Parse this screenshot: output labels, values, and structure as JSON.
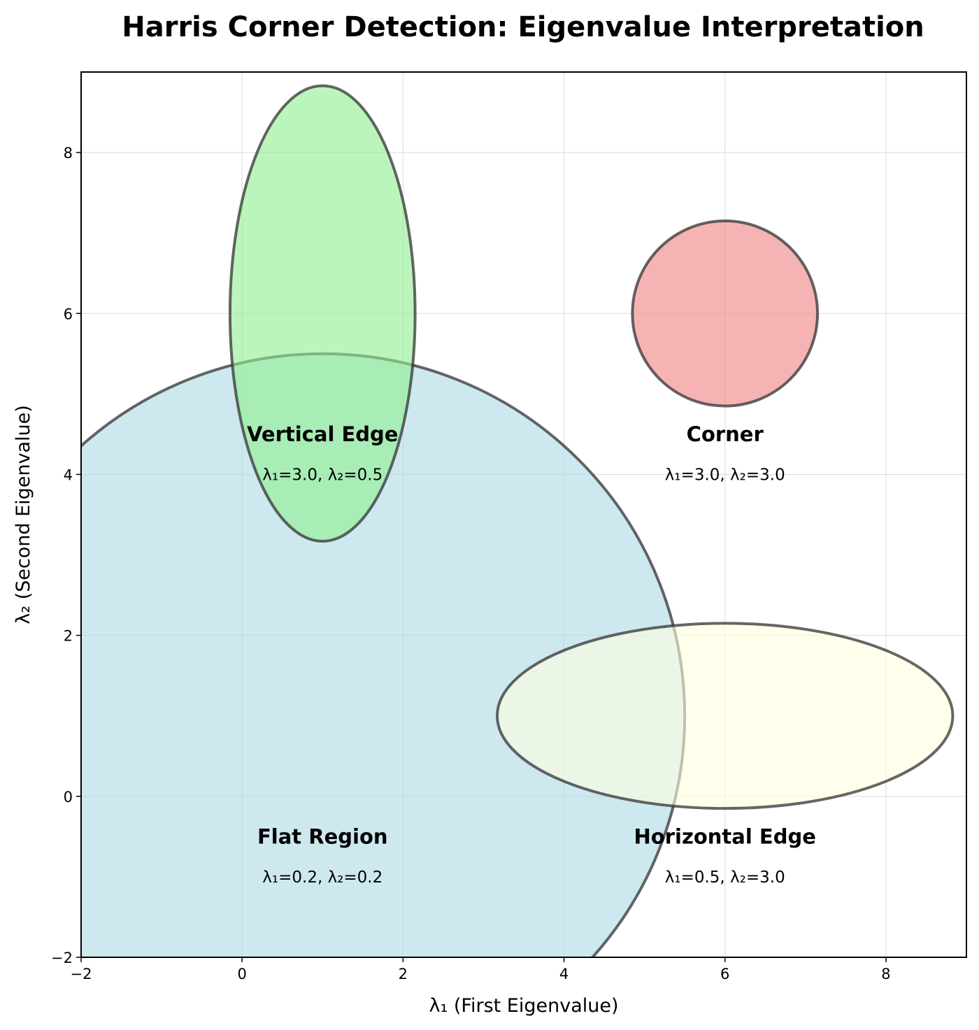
{
  "chart_data": {
    "type": "scatter",
    "title": "Harris Corner Detection: Eigenvalue Interpretation",
    "xlabel": "λ₁ (First Eigenvalue)",
    "ylabel": "λ₂ (Second Eigenvalue)",
    "xlim": [
      -2,
      9
    ],
    "ylim": [
      -2,
      9
    ],
    "xticks": [
      {
        "value": -2,
        "label": "−2"
      },
      {
        "value": 0,
        "label": "0"
      },
      {
        "value": 2,
        "label": "2"
      },
      {
        "value": 4,
        "label": "4"
      },
      {
        "value": 6,
        "label": "6"
      },
      {
        "value": 8,
        "label": "8"
      }
    ],
    "yticks": [
      {
        "value": -2,
        "label": "−2"
      },
      {
        "value": 0,
        "label": "0"
      },
      {
        "value": 2,
        "label": "2"
      },
      {
        "value": 4,
        "label": "4"
      },
      {
        "value": 6,
        "label": "6"
      },
      {
        "value": 8,
        "label": "8"
      }
    ],
    "grid": true,
    "regions": [
      {
        "name": "Flat Region",
        "values_text": "λ₁=0.2, λ₂=0.2",
        "center": [
          1,
          1
        ],
        "width": 9.0,
        "height": 9.0,
        "color": "#ADD8E6",
        "alpha": 0.6,
        "label_pos": [
          1,
          -0.5
        ],
        "values_pos": [
          1,
          -1
        ]
      },
      {
        "name": "Vertical Edge",
        "values_text": "λ₁=3.0, λ₂=0.5",
        "center": [
          1,
          6
        ],
        "width": 2.3,
        "height": 5.66,
        "color": "#90EE90",
        "alpha": 0.6,
        "label_pos": [
          1,
          4.5
        ],
        "values_pos": [
          1,
          4
        ]
      },
      {
        "name": "Corner",
        "values_text": "λ₁=3.0, λ₂=3.0",
        "center": [
          6,
          6
        ],
        "width": 2.3,
        "height": 2.3,
        "color": "#F08080",
        "alpha": 0.6,
        "label_pos": [
          6,
          4.5
        ],
        "values_pos": [
          6,
          4
        ]
      },
      {
        "name": "Horizontal Edge",
        "values_text": "λ₁=0.5, λ₂=3.0",
        "center": [
          6,
          1
        ],
        "width": 5.66,
        "height": 2.3,
        "color": "#FFFFE0",
        "alpha": 0.6,
        "label_pos": [
          6,
          -0.5
        ],
        "values_pos": [
          6,
          -1
        ]
      }
    ]
  }
}
